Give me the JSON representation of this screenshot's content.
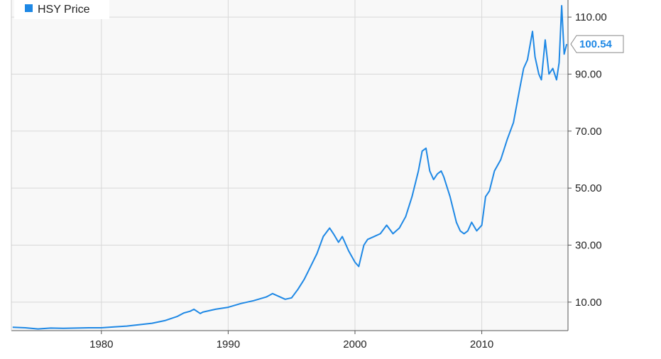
{
  "chart_data": {
    "type": "line",
    "title": "",
    "xlabel": "",
    "ylabel": "",
    "xlim": [
      1972.9,
      2016.8
    ],
    "ylim": [
      0,
      116
    ],
    "grid": true,
    "legend_position": "top-left",
    "x_ticks": [
      1980,
      1990,
      2000,
      2010
    ],
    "x_tick_labels": [
      "1980",
      "1990",
      "2000",
      "2010"
    ],
    "y_ticks": [
      10,
      30,
      50,
      70,
      90,
      110
    ],
    "y_tick_labels": [
      "10.00",
      "30.00",
      "50.00",
      "70.00",
      "90.00",
      "110.00"
    ],
    "last_value_label": "100.54",
    "colors": {
      "series": "#1e88e5",
      "plot_bg": "#f8f8f8",
      "grid": "#d8d8d8",
      "axis": "#555555"
    },
    "series": [
      {
        "name": "HSY Price",
        "x": [
          1973.0,
          1974.0,
          1975.0,
          1976.0,
          1977.0,
          1978.0,
          1979.0,
          1980.0,
          1981.0,
          1982.0,
          1983.0,
          1984.0,
          1985.0,
          1986.0,
          1986.5,
          1987.0,
          1987.3,
          1987.8,
          1988.0,
          1989.0,
          1990.0,
          1991.0,
          1992.0,
          1993.0,
          1993.5,
          1994.0,
          1994.5,
          1995.0,
          1995.5,
          1996.0,
          1996.5,
          1997.0,
          1997.5,
          1998.0,
          1998.3,
          1998.7,
          1999.0,
          1999.5,
          2000.0,
          2000.3,
          2000.7,
          2001.0,
          2001.5,
          2002.0,
          2002.5,
          2003.0,
          2003.5,
          2004.0,
          2004.5,
          2005.0,
          2005.3,
          2005.6,
          2005.9,
          2006.2,
          2006.5,
          2006.8,
          2007.0,
          2007.5,
          2008.0,
          2008.3,
          2008.6,
          2008.9,
          2009.2,
          2009.6,
          2010.0,
          2010.3,
          2010.6,
          2011.0,
          2011.5,
          2012.0,
          2012.5,
          2013.0,
          2013.3,
          2013.6,
          2014.0,
          2014.2,
          2014.5,
          2014.7,
          2015.0,
          2015.3,
          2015.6,
          2015.9,
          2016.1,
          2016.3,
          2016.5,
          2016.7
        ],
        "values": [
          1.2,
          1.0,
          0.6,
          0.9,
          0.8,
          0.9,
          1.0,
          1.0,
          1.3,
          1.6,
          2.1,
          2.6,
          3.5,
          5.0,
          6.2,
          6.8,
          7.5,
          6.0,
          6.5,
          7.5,
          8.2,
          9.5,
          10.5,
          11.8,
          13.0,
          12.0,
          11.0,
          11.5,
          14.5,
          18.0,
          22.5,
          27.0,
          33.0,
          36.0,
          34.0,
          31.0,
          33.0,
          28.0,
          24.0,
          22.5,
          30.0,
          32.0,
          33.0,
          34.0,
          37.0,
          34.0,
          36.0,
          40.0,
          47.0,
          56.0,
          63.0,
          64.0,
          56.0,
          53.0,
          55.0,
          56.0,
          54.0,
          47.0,
          38.0,
          35.0,
          34.0,
          35.0,
          38.0,
          35.0,
          37.0,
          47.0,
          49.0,
          56.0,
          60.0,
          67.0,
          73.0,
          85.0,
          92.0,
          95.0,
          105.0,
          96.0,
          90.0,
          88.0,
          102.0,
          90.0,
          92.0,
          88.0,
          94.0,
          114.0,
          97.0,
          100.54
        ]
      }
    ]
  }
}
